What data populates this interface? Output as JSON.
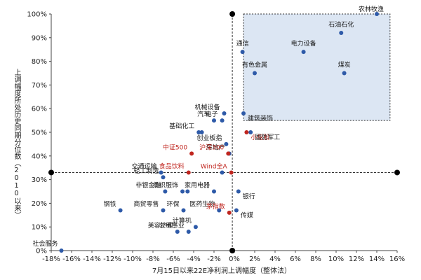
{
  "chart_data": {
    "type": "scatter",
    "title": "",
    "xlabel": "7月15日以来22E净利润上调幅度（整体法）",
    "ylabel": "上调幅度所处历史同期分位数（2010以来）",
    "xlim": [
      -18,
      16
    ],
    "ylim": [
      0,
      100
    ],
    "x_unit": "%",
    "y_unit": "%",
    "x_ticks": [
      "-18%",
      "-16%",
      "-14%",
      "-12%",
      "-10%",
      "-8%",
      "-6%",
      "-4%",
      "-2%",
      "0%",
      "2%",
      "4%",
      "6%",
      "8%",
      "10%",
      "12%",
      "14%",
      "16%"
    ],
    "y_ticks": [
      "0%",
      "10%",
      "20%",
      "30%",
      "40%",
      "50%",
      "60%",
      "70%",
      "80%",
      "90%",
      "100%"
    ],
    "grid": false,
    "reference_lines": {
      "x": -0.2,
      "y": 33
    },
    "highlight_box": {
      "x": [
        0.9,
        15.3
      ],
      "y": [
        55,
        100
      ]
    },
    "colors": {
      "point": "#2e5aa8",
      "highlight_point": "#c0261f",
      "box_fill": "#dce6f3",
      "label_red": "#c0261f",
      "reference_line": "#333333"
    },
    "points": [
      {
        "label": "农林牧渔",
        "x": 14.0,
        "y": 100,
        "highlight": false
      },
      {
        "label": "石油石化",
        "x": 10.5,
        "y": 92,
        "highlight": false
      },
      {
        "label": "通信",
        "x": 0.8,
        "y": 84,
        "highlight": false
      },
      {
        "label": "电力设备",
        "x": 6.8,
        "y": 84,
        "highlight": false
      },
      {
        "label": "有色金属",
        "x": 2.0,
        "y": 75,
        "highlight": false
      },
      {
        "label": "煤炭",
        "x": 10.8,
        "y": 75,
        "highlight": false
      },
      {
        "label": "机械设备",
        "x": -1.0,
        "y": 58,
        "highlight": false
      },
      {
        "label": "建筑装饰",
        "x": 0.9,
        "y": 58,
        "highlight": false
      },
      {
        "label": "汽车",
        "x": -2.0,
        "y": 55,
        "highlight": false
      },
      {
        "label": "电子",
        "x": -1.2,
        "y": 55,
        "highlight": false
      },
      {
        "label": "基础化工",
        "x": -3.5,
        "y": 50,
        "highlight": false
      },
      {
        "label": "",
        "x": -3.2,
        "y": 50,
        "highlight": false
      },
      {
        "label": "小盘股",
        "x": 1.2,
        "y": 50,
        "highlight": true
      },
      {
        "label": "国防军工",
        "x": 1.6,
        "y": 50,
        "highlight": false
      },
      {
        "label": "创业板指",
        "x": -0.8,
        "y": 45,
        "highlight": false
      },
      {
        "label": "房地产",
        "x": -0.5,
        "y": 41,
        "highlight": false
      },
      {
        "label": "中证500",
        "x": -4.2,
        "y": 41,
        "highlight": true
      },
      {
        "label": "沪深300",
        "x": -0.6,
        "y": 41,
        "highlight": true
      },
      {
        "label": "交通运输",
        "x": -7.2,
        "y": 33,
        "highlight": false
      },
      {
        "label": "食品饮料",
        "x": -4.5,
        "y": 33,
        "highlight": true
      },
      {
        "label": "Wind全A",
        "x": -0.3,
        "y": 33,
        "highlight": true
      },
      {
        "label": "",
        "x": -1.2,
        "y": 33,
        "highlight": false
      },
      {
        "label": "轻工制造",
        "x": -7.0,
        "y": 31,
        "highlight": false
      },
      {
        "label": "非银金融",
        "x": -6.8,
        "y": 25,
        "highlight": false
      },
      {
        "label": "纺织服饰",
        "x": -5.1,
        "y": 25,
        "highlight": false
      },
      {
        "label": "",
        "x": -4.6,
        "y": 25,
        "highlight": false
      },
      {
        "label": "银行",
        "x": 0.4,
        "y": 25,
        "highlight": false
      },
      {
        "label": "家用电器",
        "x": -2.0,
        "y": 25,
        "highlight": false
      },
      {
        "label": "钢铁",
        "x": -11.2,
        "y": 17,
        "highlight": false
      },
      {
        "label": "商贸零售",
        "x": -7.0,
        "y": 17,
        "highlight": false
      },
      {
        "label": "环保",
        "x": -5.0,
        "y": 17,
        "highlight": false
      },
      {
        "label": "医药生物",
        "x": -1.5,
        "y": 17,
        "highlight": false
      },
      {
        "label": "传媒",
        "x": 0.2,
        "y": 17,
        "highlight": false
      },
      {
        "label": "茅指数",
        "x": -0.5,
        "y": 16,
        "highlight": true
      },
      {
        "label": "计算机",
        "x": -3.8,
        "y": 10,
        "highlight": false
      },
      {
        "label": "美容护理",
        "x": -5.6,
        "y": 8,
        "highlight": false
      },
      {
        "label": "公用事业",
        "x": -4.5,
        "y": 8,
        "highlight": false
      },
      {
        "label": "社会服务",
        "x": -17.0,
        "y": 0,
        "highlight": false
      }
    ]
  }
}
